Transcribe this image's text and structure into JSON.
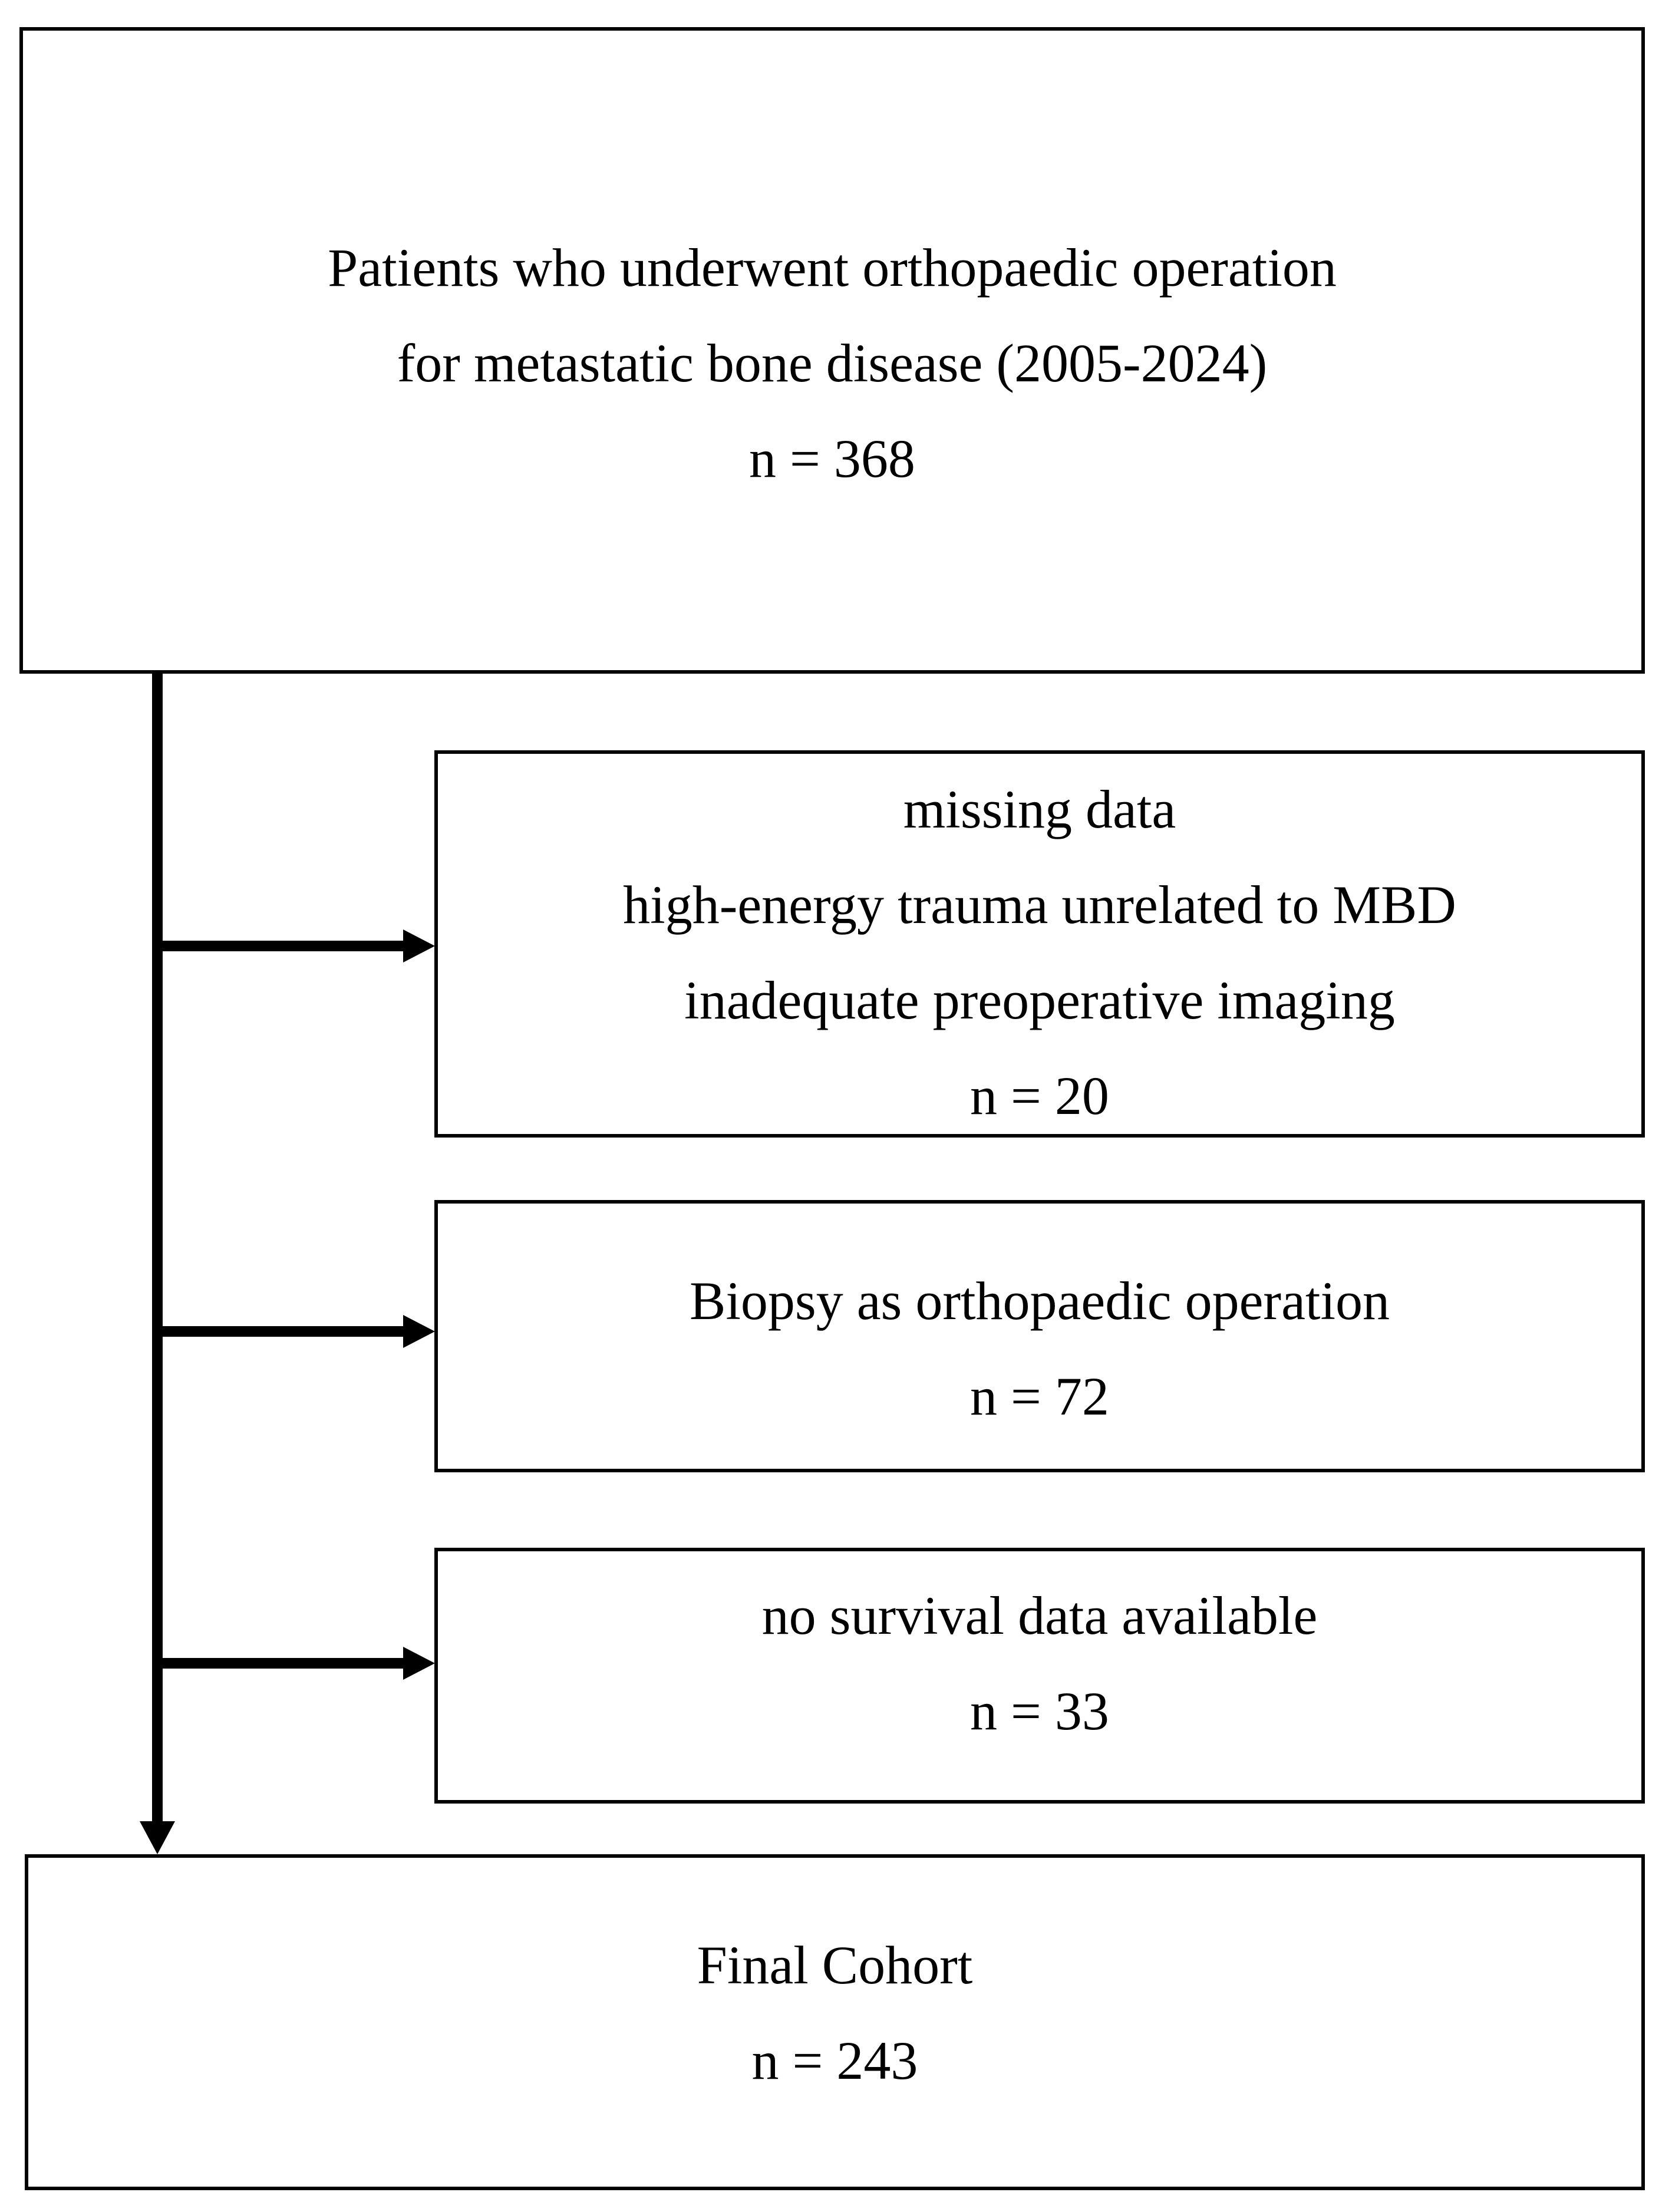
{
  "diagram": {
    "top_box": {
      "lines": [
        "Patients who underwent orthopaedic operation",
        "for metastatic bone disease (2005-2024)"
      ],
      "n_label": "n = 368"
    },
    "exclusion_boxes": [
      {
        "lines": [
          "missing data",
          "high-energy trauma unrelated to MBD",
          "inadequate preoperative imaging"
        ],
        "n_label": "n = 20"
      },
      {
        "lines": [
          "Biopsy as orthopaedic operation"
        ],
        "n_label": "n = 72"
      },
      {
        "lines": [
          "no survival data available"
        ],
        "n_label": "n = 33"
      }
    ],
    "final_box": {
      "lines": [
        "Final Cohort"
      ],
      "n_label": "n = 243"
    }
  },
  "colors": {
    "background": "#ffffff",
    "line": "#000000",
    "text": "#000000"
  }
}
